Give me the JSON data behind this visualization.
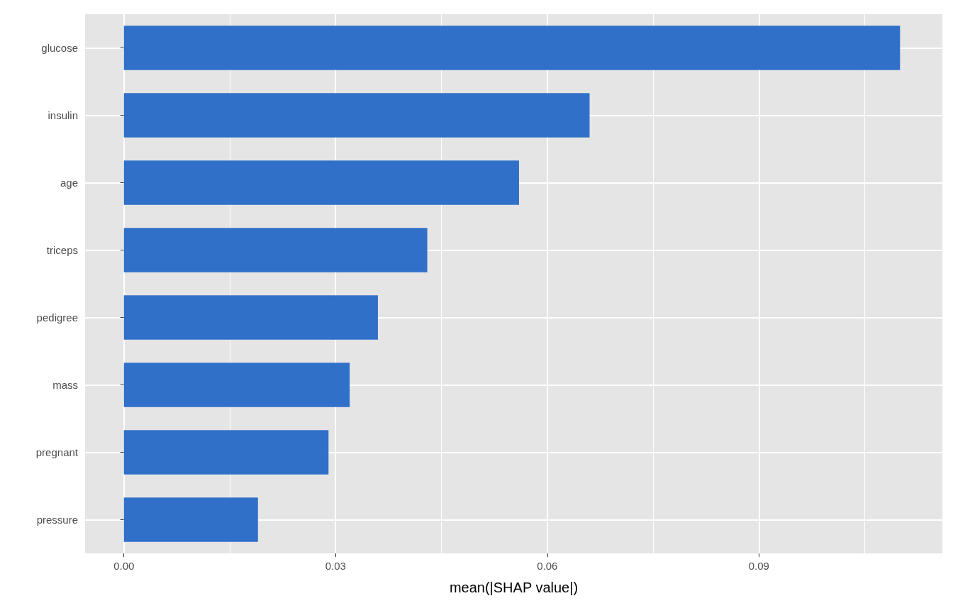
{
  "chart_data": {
    "type": "bar",
    "orientation": "horizontal",
    "xlabel": "mean(|SHAP value|)",
    "categories": [
      "glucose",
      "insulin",
      "age",
      "triceps",
      "pedigree",
      "mass",
      "pregnant",
      "pressure"
    ],
    "values": [
      0.11,
      0.066,
      0.056,
      0.043,
      0.036,
      0.032,
      0.029,
      0.019
    ],
    "color": "#3070c8",
    "xlim": [
      -0.0055,
      0.116
    ],
    "xticks": [
      {
        "value": 0,
        "label": "0.00"
      },
      {
        "value": 0.03,
        "label": "0.03"
      },
      {
        "value": 0.06,
        "label": "0.06"
      },
      {
        "value": 0.09,
        "label": "0.09"
      }
    ],
    "grid": true
  }
}
